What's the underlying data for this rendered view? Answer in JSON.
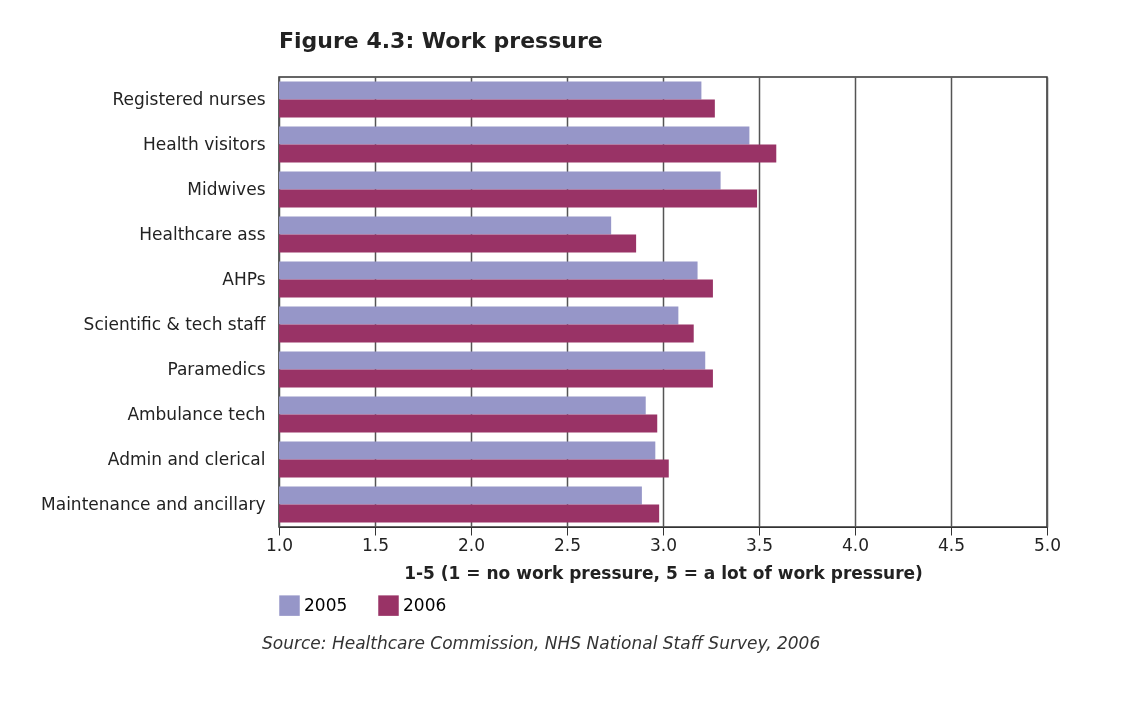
{
  "chart_data": {
    "type": "bar",
    "orientation": "horizontal",
    "title": "Figure 4.3: Work pressure",
    "xlabel": "1-5 (1 = no work pressure, 5 = a lot of work pressure)",
    "categories": [
      "Registered nurses",
      "Health visitors",
      "Midwives",
      "Healthcare ass",
      "AHPs",
      "Scientific & tech staff",
      "Paramedics",
      "Ambulance tech",
      "Admin and clerical",
      "Maintenance and ancillary"
    ],
    "series": [
      {
        "name": "2005",
        "color": "#9696c8",
        "values": [
          3.2,
          3.45,
          3.3,
          2.73,
          3.18,
          3.08,
          3.22,
          2.91,
          2.96,
          2.89
        ]
      },
      {
        "name": "2006",
        "color": "#993366",
        "values": [
          3.27,
          3.59,
          3.49,
          2.86,
          3.26,
          3.16,
          3.26,
          2.97,
          3.03,
          2.98
        ]
      }
    ],
    "xlim": [
      1.0,
      5.0
    ],
    "xticks": [
      {
        "value": 1,
        "label": "1.0"
      },
      {
        "value": 1.5,
        "label": "1.5"
      },
      {
        "value": 2,
        "label": "2.0"
      },
      {
        "value": 2.5,
        "label": "2.5"
      },
      {
        "value": 3,
        "label": "3.0"
      },
      {
        "value": 3.5,
        "label": "3.5"
      },
      {
        "value": 4,
        "label": "4.0"
      },
      {
        "value": 4.5,
        "label": "4.5"
      },
      {
        "value": 5,
        "label": "5.0"
      }
    ],
    "grid": "x",
    "legend": "bottom",
    "annotations": [
      "Source: Healthcare Commission, NHS National Staff Survey, 2006"
    ]
  }
}
